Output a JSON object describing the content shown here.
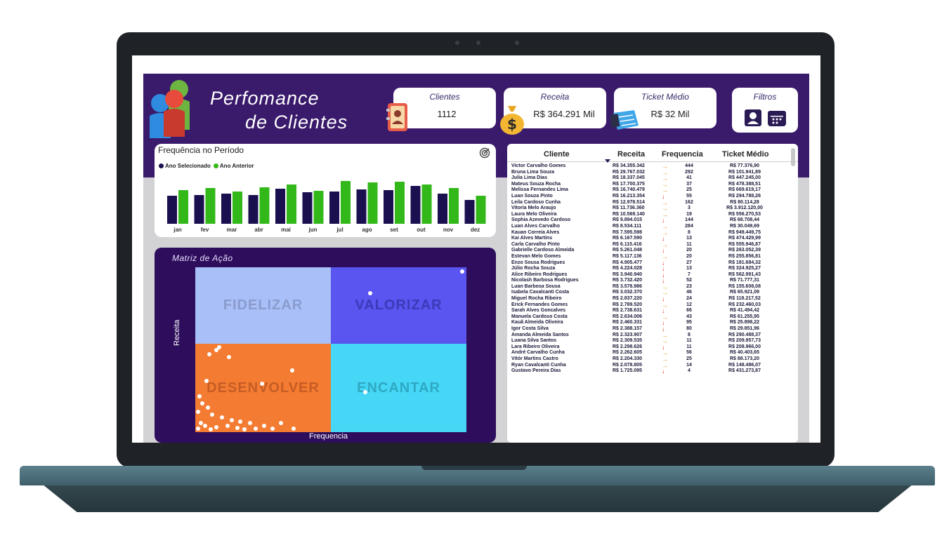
{
  "header": {
    "title_line1": "Perfomance",
    "title_line2": "de Clientes"
  },
  "cards": {
    "clientes": {
      "label": "Clientes",
      "value": "1112"
    },
    "receita": {
      "label": "Receita",
      "value": "R$ 364.291 Mil"
    },
    "ticket": {
      "label": "Ticket Médio",
      "value": "R$ 32 Mil"
    },
    "filtros": {
      "label": "Filtros"
    }
  },
  "frequency_chart": {
    "title": "Frequência no Período",
    "legend": [
      "Ano Selecionado",
      "Ano Anterior"
    ],
    "colors": {
      "selected": "#1a1050",
      "previous": "#33b81a"
    }
  },
  "chart_data": {
    "type": "bar",
    "title": "Frequência no Período",
    "categories": [
      "jan",
      "fev",
      "mar",
      "abr",
      "mai",
      "jun",
      "jul",
      "ago",
      "set",
      "out",
      "nov",
      "dez"
    ],
    "series": [
      {
        "name": "Ano Selecionado",
        "values": [
          40,
          41,
          43,
          41,
          50,
          45,
          46,
          49,
          48,
          54,
          43,
          34
        ]
      },
      {
        "name": "Ano Anterior",
        "values": [
          48,
          51,
          46,
          52,
          56,
          47,
          61,
          59,
          60,
          56,
          51,
          40
        ]
      }
    ],
    "ylim": [
      0,
      70
    ]
  },
  "matrix": {
    "title": "Matriz de Ação",
    "xlabel": "Frequencia",
    "ylabel": "Receita",
    "quadrants": {
      "fidelizar": "FIDELIZAR",
      "valorizar": "VALORIZAR",
      "desenvolver": "DESENVOLVER",
      "encantar": "ENCANTAR"
    },
    "colors": {
      "fidelizar": "#a9bff7",
      "valorizar": "#5a54f0",
      "desenvolver": "#f47b32",
      "encantar": "#45d7f5"
    }
  },
  "table": {
    "columns": [
      "Cliente",
      "Receita",
      "Frequencia",
      "Ticket Médio"
    ],
    "rows": [
      [
        "Victor Carvalho Gomes",
        "R$ 34.355.342",
        "up",
        "444",
        "R$ 77.376,90"
      ],
      [
        "Bruna Lima Souza",
        "R$ 29.767.032",
        "up",
        "292",
        "R$ 101.941,89"
      ],
      [
        "Julia Lima Dias",
        "R$ 18.337.045",
        "right",
        "41",
        "R$ 447.245,00"
      ],
      [
        "Mateus Souza Rocha",
        "R$ 17.700.375",
        "right",
        "37",
        "R$ 478.388,51"
      ],
      [
        "Melissa Fernandes Lima",
        "R$ 16.740.479",
        "right",
        "25",
        "R$ 669.619,17"
      ],
      [
        "Luan Souza Pinto",
        "R$ 16.213.354",
        "down",
        "55",
        "R$ 294.788,26"
      ],
      [
        "Leila Cardoso Cunha",
        "R$ 12.978.514",
        "right",
        "162",
        "R$ 80.114,28"
      ],
      [
        "Vitoria Melo Araujo",
        "R$ 11.736.360",
        "right",
        "3",
        "R$ 3.912.120,00"
      ],
      [
        "Laura Melo Oliveira",
        "R$ 10.569.140",
        "right",
        "19",
        "R$ 556.270,53"
      ],
      [
        "Sophia Azevedo Cardoso",
        "R$ 9.894.015",
        "down",
        "144",
        "R$ 68.708,44"
      ],
      [
        "Luan Alves Carvalho",
        "R$ 8.534.111",
        "right",
        "284",
        "R$ 30.049,69"
      ],
      [
        "Kauan Correia Alves",
        "R$ 7.595.598",
        "right",
        "8",
        "R$ 949.449,75"
      ],
      [
        "Kai Alves Martins",
        "R$ 6.167.590",
        "down",
        "13",
        "R$ 474.429,99"
      ],
      [
        "Carla Carvalho Pinto",
        "R$ 6.115.416",
        "right",
        "11",
        "R$ 555.946,87"
      ],
      [
        "Gabrielle Cardoso Almeida",
        "R$ 5.261.048",
        "down",
        "20",
        "R$ 263.052,39"
      ],
      [
        "Estevan Melo Gomes",
        "R$ 5.117.136",
        "right",
        "20",
        "R$ 255.856,81"
      ],
      [
        "Enzo Sousa Rodrigues",
        "R$ 4.905.477",
        "down",
        "27",
        "R$ 181.684,32"
      ],
      [
        "Júlio Rocha Souza",
        "R$ 4.224.028",
        "down",
        "13",
        "R$ 324.925,27"
      ],
      [
        "Alice Ribeiro Rodrigues",
        "R$ 3.940.940",
        "down",
        "7",
        "R$ 562.991,43"
      ],
      [
        "Nicolash Barbosa Rodrigues",
        "R$ 3.732.420",
        "down",
        "52",
        "R$ 71.777,31"
      ],
      [
        "Luan Barbosa Sousa",
        "R$ 3.578.986",
        "right",
        "23",
        "R$ 155.608,08"
      ],
      [
        "Isabela Cavalcanti Costa",
        "R$ 3.032.370",
        "right",
        "46",
        "R$ 65.921,09"
      ],
      [
        "Miguel Rocha Ribeiro",
        "R$ 2.837.220",
        "down",
        "24",
        "R$ 118.217,52"
      ],
      [
        "Erick Fernandes Gomes",
        "R$ 2.789.520",
        "right",
        "12",
        "R$ 232.460,03"
      ],
      [
        "Sarah Alves Goncalves",
        "R$ 2.738.631",
        "down",
        "66",
        "R$ 41.494,42"
      ],
      [
        "Manuela Cardoso Costa",
        "R$ 2.634.006",
        "right",
        "43",
        "R$ 61.255,95"
      ],
      [
        "Kauã Almeida Oliveira",
        "R$ 2.460.331",
        "down",
        "95",
        "R$ 25.898,22"
      ],
      [
        "Igor Costa Silva",
        "R$ 2.388.157",
        "down",
        "80",
        "R$ 29.851,96"
      ],
      [
        "Amanda Almeida Santos",
        "R$ 2.323.907",
        "right",
        "8",
        "R$ 290.488,37"
      ],
      [
        "Luana Silva Santos",
        "R$ 2.309.535",
        "right",
        "11",
        "R$ 209.957,73"
      ],
      [
        "Lara Ribeiro Oliveira",
        "R$ 2.298.626",
        "down",
        "11",
        "R$ 208.966,00"
      ],
      [
        "André Carvalho Cunha",
        "R$ 2.262.605",
        "right",
        "56",
        "R$ 40.403,65"
      ],
      [
        "Vitór Martins Castro",
        "R$ 2.204.330",
        "right",
        "25",
        "R$ 88.173,20"
      ],
      [
        "Ryan Cavalcanti Cunha",
        "R$ 2.078.805",
        "right",
        "14",
        "R$ 148.486,07"
      ],
      [
        "Gustavo Pereira Dias",
        "R$ 1.725.095",
        "down",
        "4",
        "R$ 431.273,87"
      ]
    ]
  }
}
